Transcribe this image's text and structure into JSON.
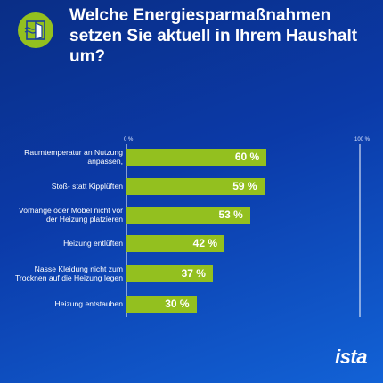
{
  "header": {
    "title": "Welche Energiesparmaßnahmen setzen Sie aktuell in Ihrem Haushalt um?",
    "icon": "window-ventilation-icon",
    "accent_color": "#93c01f"
  },
  "logo": {
    "text": "ista"
  },
  "chart_data": {
    "type": "bar",
    "orientation": "horizontal",
    "categories": [
      "Raumtemperatur an Nutzung anpassen,",
      "Stoß- statt Kipplüften",
      "Vorhänge oder Möbel nicht vor der Heizung platzieren",
      "Heizung entlüften",
      "Nasse Kleidung nicht zum Trocknen auf die Heizung legen",
      "Heizung entstauben"
    ],
    "values": [
      60,
      59,
      53,
      42,
      37,
      30
    ],
    "value_labels": [
      "60 %",
      "59 %",
      "53 %",
      "42 %",
      "37 %",
      "30 %"
    ],
    "axis_min_label": "0 %",
    "axis_max_label": "100 %",
    "xlim": [
      0,
      100
    ],
    "bar_color": "#93c01f",
    "grid": false
  }
}
